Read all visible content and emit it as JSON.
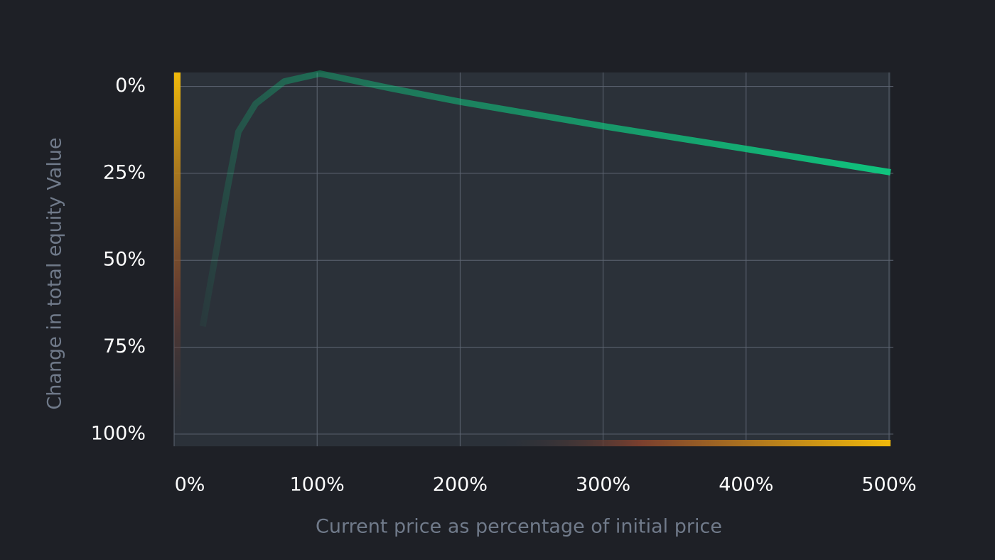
{
  "chart_data": {
    "type": "line",
    "x_label": "Current price as percentage of initial price",
    "y_label": "Change in total equity Value",
    "x": [
      20,
      27,
      37,
      45,
      57,
      77,
      102,
      152,
      201,
      301,
      400,
      501
    ],
    "series": [
      {
        "color": "#0ecb81",
        "values": [
          69,
          53,
          30,
          13,
          5,
          -1.4,
          -3.7,
          0.6,
          4.5,
          11.5,
          18,
          24.7
        ]
      }
    ],
    "xlim": [
      0,
      501
    ],
    "ylim": [
      -4,
      103.5
    ],
    "y_inverted": true,
    "xticks": [
      {
        "value": 0,
        "label": "0%"
      },
      {
        "value": 100,
        "label": "100%"
      },
      {
        "value": 200,
        "label": "200%"
      },
      {
        "value": 300,
        "label": "300%"
      },
      {
        "value": 400,
        "label": "400%"
      },
      {
        "value": 500,
        "label": "500%"
      }
    ],
    "yticks": [
      {
        "value": 0,
        "label": "0%"
      },
      {
        "value": 25,
        "label": "25%"
      },
      {
        "value": 50,
        "label": "50%"
      },
      {
        "value": 75,
        "label": "75%"
      },
      {
        "value": 100,
        "label": "100%"
      }
    ],
    "grid": true
  }
}
